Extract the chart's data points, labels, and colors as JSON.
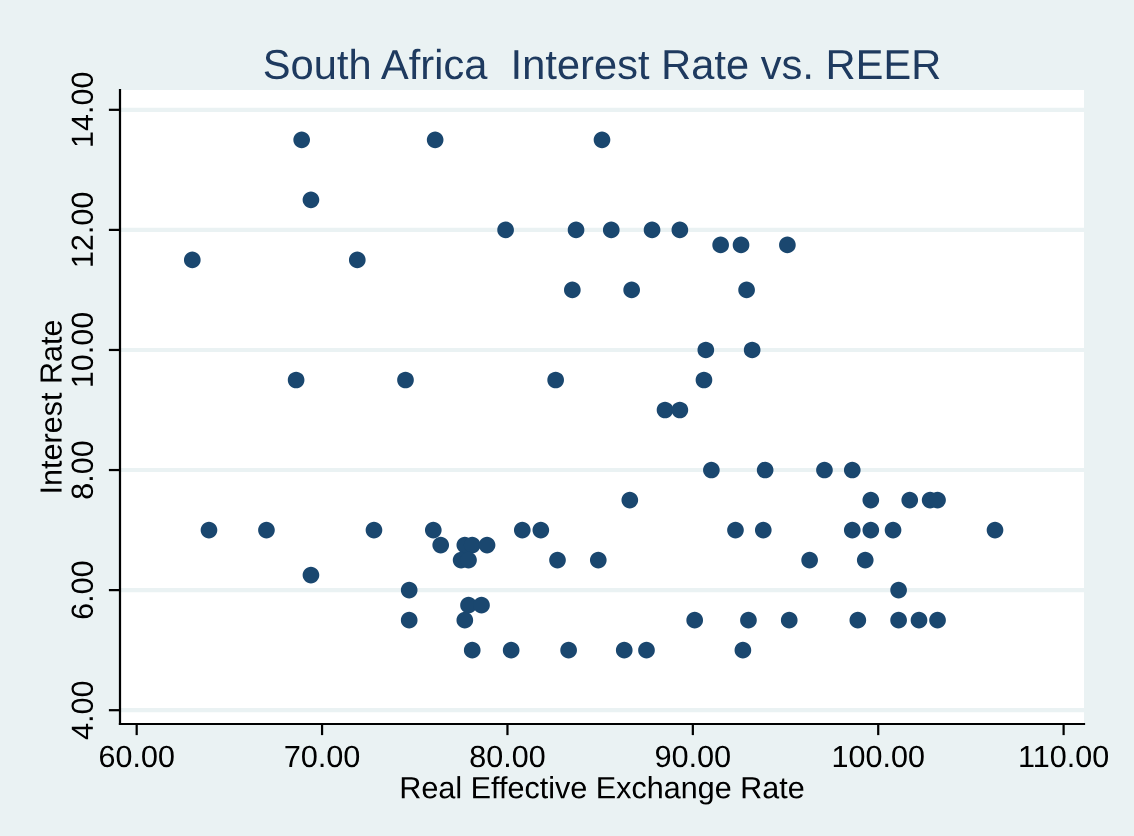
{
  "chart_data": {
    "type": "scatter",
    "title": "South Africa  Interest Rate vs. REER",
    "xlabel": "Real Effective Exchange Rate",
    "ylabel": "Interest Rate",
    "x": [
      68.9,
      76.1,
      85.1,
      69.4,
      63.0,
      71.9,
      79.9,
      83.7,
      83.5,
      68.6,
      74.5,
      82.6,
      85.6,
      87.8,
      89.3,
      91.5,
      92.6,
      95.1,
      86.7,
      92.9,
      90.7,
      93.2,
      90.6,
      88.5,
      89.3,
      63.9,
      67.0,
      72.8,
      76.0,
      80.8,
      81.8,
      69.4,
      76.4,
      77.7,
      78.1,
      78.9,
      77.5,
      77.9,
      82.7,
      84.9,
      74.7,
      74.7,
      77.7,
      77.9,
      78.6,
      78.1,
      80.2,
      83.3,
      91.0,
      93.9,
      97.1,
      98.6,
      86.6,
      99.6,
      101.7,
      102.8,
      103.2,
      92.3,
      93.8,
      98.6,
      99.6,
      100.8,
      106.3,
      96.3,
      99.3,
      101.1,
      90.1,
      93.0,
      95.2,
      98.9,
      101.1,
      102.2,
      103.2,
      86.3,
      87.5,
      92.7
    ],
    "values": [
      13.5,
      13.5,
      13.5,
      12.5,
      11.5,
      11.5,
      12.0,
      12.0,
      11.0,
      9.5,
      9.5,
      9.5,
      12.0,
      12.0,
      12.0,
      11.75,
      11.75,
      11.75,
      11.0,
      11.0,
      10.0,
      10.0,
      9.5,
      9.0,
      9.0,
      7.0,
      7.0,
      7.0,
      7.0,
      7.0,
      7.0,
      6.25,
      6.75,
      6.75,
      6.75,
      6.75,
      6.5,
      6.5,
      6.5,
      6.5,
      6.0,
      5.5,
      5.5,
      5.75,
      5.75,
      5.0,
      5.0,
      5.0,
      8.0,
      8.0,
      8.0,
      8.0,
      7.5,
      7.5,
      7.5,
      7.5,
      7.5,
      7.0,
      7.0,
      7.0,
      7.0,
      7.0,
      7.0,
      6.5,
      6.5,
      6.0,
      5.5,
      5.5,
      5.5,
      5.5,
      5.5,
      5.5,
      5.5,
      5.0,
      5.0,
      5.0
    ],
    "color": "#1a476f",
    "marker": "circle",
    "grid": "y",
    "legend": false,
    "xlim": [
      59.1,
      111.1
    ],
    "ylim": [
      3.77,
      14.33
    ],
    "xticks": [
      {
        "value": 60,
        "label": "60.00"
      },
      {
        "value": 70,
        "label": "70.00"
      },
      {
        "value": 80,
        "label": "80.00"
      },
      {
        "value": 90,
        "label": "90.00"
      },
      {
        "value": 100,
        "label": "100.00"
      },
      {
        "value": 110,
        "label": "110.00"
      }
    ],
    "yticks": [
      {
        "value": 4,
        "label": "4.00"
      },
      {
        "value": 6,
        "label": "6.00"
      },
      {
        "value": 8,
        "label": "8.00"
      },
      {
        "value": 10,
        "label": "10.00"
      },
      {
        "value": 12,
        "label": "12.00"
      },
      {
        "value": 14,
        "label": "14.00"
      }
    ]
  }
}
